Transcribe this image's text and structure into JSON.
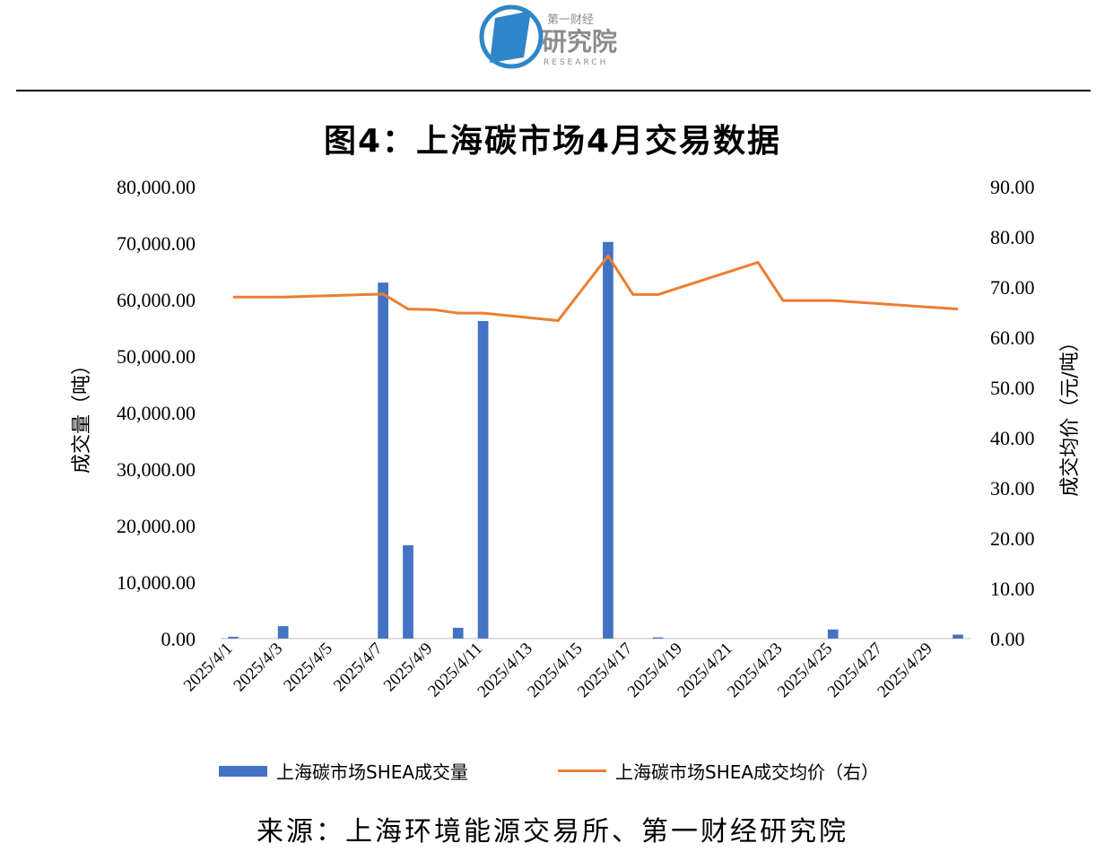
{
  "logo": {
    "line1": "第一财经",
    "line2": "研究院",
    "line3": "RESEARCH",
    "colors": {
      "blue": "#2E86C8",
      "gray": "#8C8C8C"
    }
  },
  "title": "图4：上海碳市场4月交易数据",
  "source": "来源：上海环境能源交易所、第一财经研究院",
  "legend": {
    "bar_label": "上海碳市场SHEA成交量",
    "line_label": "上海碳市场SHEA成交均价（右）"
  },
  "colors": {
    "bar": "#4472C4",
    "line": "#ED7D31"
  },
  "chart_data": {
    "type": "bar",
    "title": "图4：上海碳市场4月交易数据",
    "ylabel_left": "成交量（吨）",
    "ylabel_right": "成交均价（元/吨）",
    "ylim_left": [
      0,
      80000
    ],
    "ylim_right": [
      0,
      90
    ],
    "yticks_left": [
      "0.00",
      "10,000.00",
      "20,000.00",
      "30,000.00",
      "40,000.00",
      "50,000.00",
      "60,000.00",
      "70,000.00",
      "80,000.00"
    ],
    "yticks_right": [
      "0.00",
      "10.00",
      "20.00",
      "30.00",
      "40.00",
      "50.00",
      "60.00",
      "70.00",
      "80.00",
      "90.00"
    ],
    "xticks": [
      "2025/4/1",
      "2025/4/3",
      "2025/4/5",
      "2025/4/7",
      "2025/4/9",
      "2025/4/11",
      "2025/4/13",
      "2025/4/15",
      "2025/4/17",
      "2025/4/19",
      "2025/4/21",
      "2025/4/23",
      "2025/4/25",
      "2025/4/27",
      "2025/4/29"
    ],
    "x": [
      "2025/4/1",
      "2025/4/2",
      "2025/4/3",
      "2025/4/4",
      "2025/4/5",
      "2025/4/6",
      "2025/4/7",
      "2025/4/8",
      "2025/4/9",
      "2025/4/10",
      "2025/4/11",
      "2025/4/12",
      "2025/4/13",
      "2025/4/14",
      "2025/4/15",
      "2025/4/16",
      "2025/4/17",
      "2025/4/18",
      "2025/4/19",
      "2025/4/20",
      "2025/4/21",
      "2025/4/22",
      "2025/4/23",
      "2025/4/24",
      "2025/4/25",
      "2025/4/26",
      "2025/4/27",
      "2025/4/28",
      "2025/4/29",
      "2025/4/30"
    ],
    "series": [
      {
        "name": "上海碳市场SHEA成交量",
        "type": "bar",
        "axis": "left",
        "values": [
          300,
          null,
          2200,
          null,
          null,
          null,
          63000,
          16500,
          null,
          1900,
          56200,
          null,
          null,
          null,
          null,
          70200,
          null,
          200,
          null,
          null,
          null,
          null,
          null,
          null,
          1600,
          null,
          null,
          null,
          null,
          700
        ]
      },
      {
        "name": "上海碳市场SHEA成交均价（右）",
        "type": "line",
        "axis": "right",
        "values": [
          68.0,
          null,
          68.0,
          null,
          null,
          null,
          68.6,
          65.6,
          65.5,
          64.8,
          64.8,
          null,
          null,
          63.3,
          null,
          76.2,
          68.5,
          68.5,
          null,
          null,
          null,
          74.9,
          67.3,
          null,
          67.3,
          null,
          null,
          null,
          null,
          65.6
        ],
        "connect_gaps": true
      }
    ],
    "grid": false,
    "legend_position": "bottom"
  }
}
